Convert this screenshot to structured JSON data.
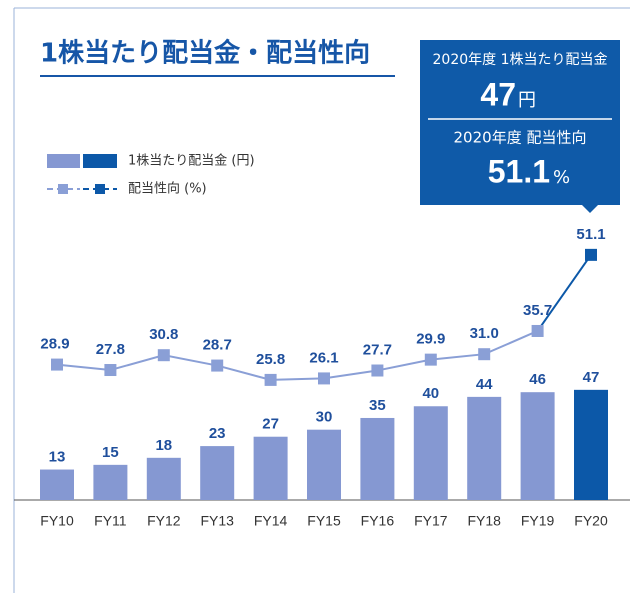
{
  "chart_data": {
    "type": "bar_line",
    "title": "1株当たり配当金・配当性向",
    "callout": {
      "dividend_label": "2020年度 1株当たり配当金",
      "dividend_value": "47",
      "dividend_unit": "円",
      "payout_label": "2020年度 配当性向",
      "payout_value": "51.1",
      "payout_unit": "%"
    },
    "categories": [
      "FY10",
      "FY11",
      "FY12",
      "FY13",
      "FY14",
      "FY15",
      "FY16",
      "FY17",
      "FY18",
      "FY19",
      "FY20"
    ],
    "series": [
      {
        "name": "1株当たり配当金 (円)",
        "type": "bar",
        "color": "#8598d2",
        "highlight_color": "#0c58a8",
        "values": [
          13,
          15,
          18,
          23,
          27,
          30,
          35,
          40,
          44,
          46,
          47
        ]
      },
      {
        "name": "配当性向 (%)",
        "type": "line",
        "axis": "y2",
        "color": "#8a9fd6",
        "highlight_color": "#0c58a8",
        "values": [
          28.9,
          27.8,
          30.8,
          28.7,
          25.8,
          26.1,
          27.7,
          29.9,
          31.0,
          35.7,
          51.1
        ],
        "value_labels": [
          "28.9",
          "27.8",
          "30.8",
          "28.7",
          "25.8",
          "26.1",
          "27.7",
          "29.9",
          "31.0",
          "35.7",
          "51.1"
        ]
      }
    ],
    "ylim": [
      0,
      128
    ],
    "y2lim": [
      1.5,
      62.2
    ]
  }
}
